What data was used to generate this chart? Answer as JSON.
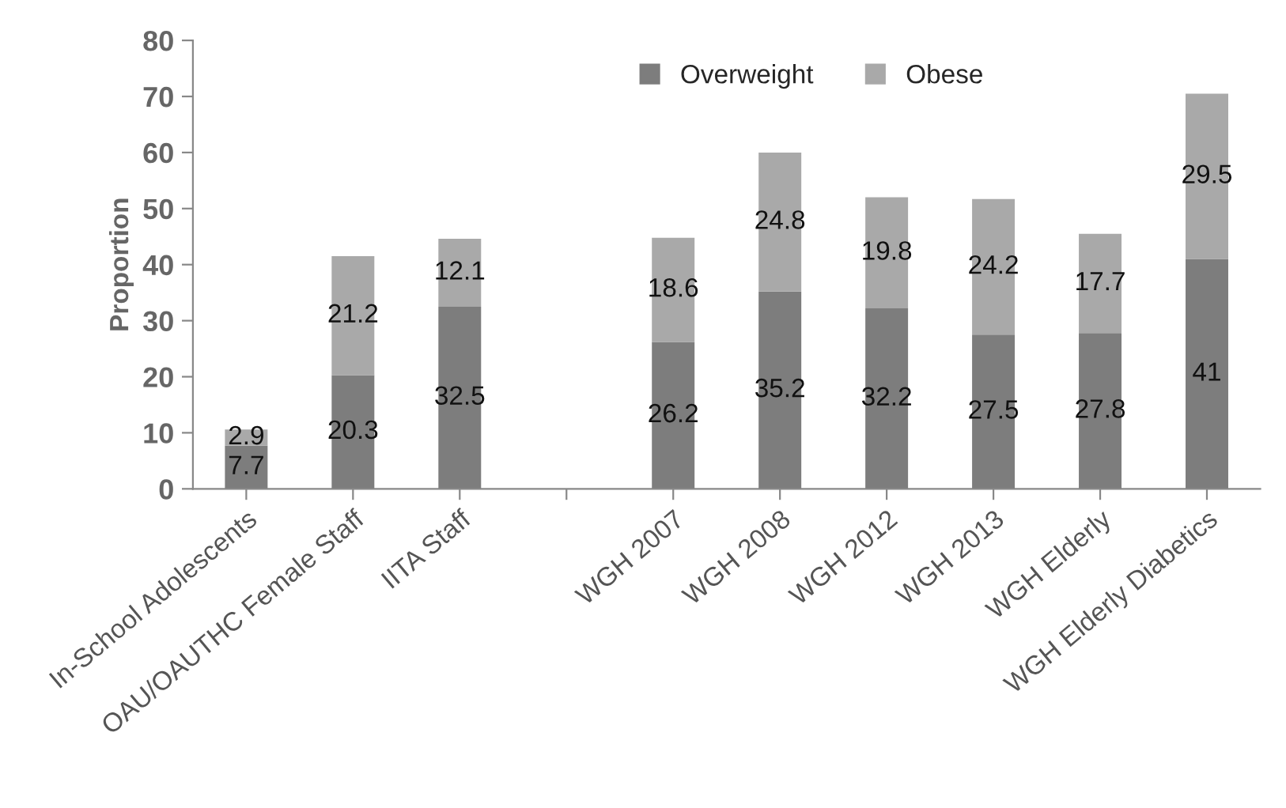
{
  "chart_data": {
    "type": "bar",
    "stacked": true,
    "ylabel": "Proportion",
    "categories": [
      "In-School Adolescents",
      "OAU/OAUTHC Female Staff",
      "IITA Staff",
      null,
      "WGH 2007",
      "WGH 2008",
      "WGH 2012",
      "WGH 2013",
      "WGH Elderly",
      "WGH Elderly Diabetics"
    ],
    "series": [
      {
        "name": "Overweight",
        "color": "#7d7d7d",
        "values": [
          7.7,
          20.3,
          32.5,
          null,
          26.2,
          35.2,
          32.2,
          27.5,
          27.8,
          41
        ]
      },
      {
        "name": "Obese",
        "color": "#a9a9a9",
        "values": [
          2.9,
          21.2,
          12.1,
          null,
          18.6,
          24.8,
          19.8,
          24.2,
          17.7,
          29.5
        ]
      }
    ],
    "ylim": [
      0,
      80
    ],
    "yticks": [
      0,
      10,
      20,
      30,
      40,
      50,
      60,
      70,
      80
    ],
    "data_labels": true,
    "legend": "top",
    "grid": false
  }
}
